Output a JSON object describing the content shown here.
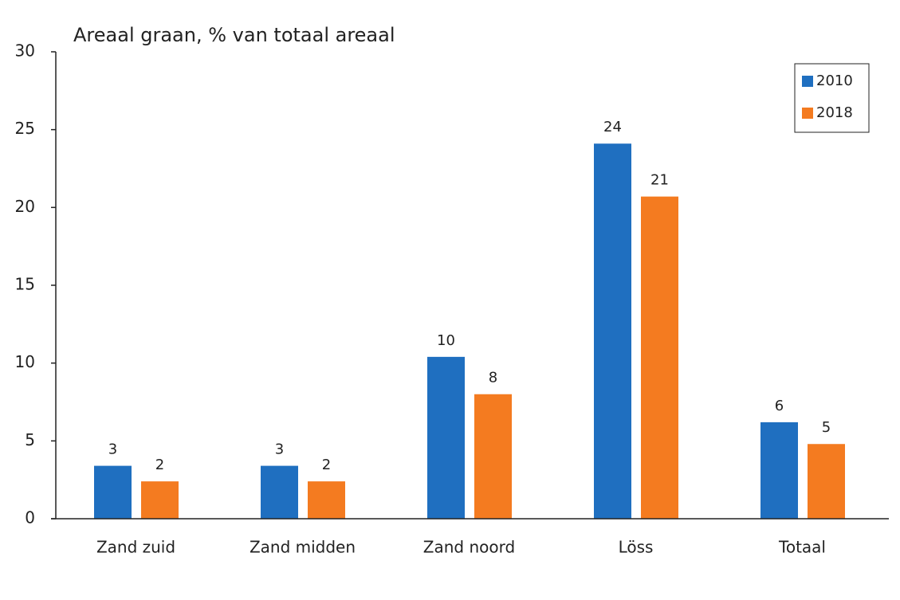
{
  "chart_data": {
    "type": "bar",
    "title": "Areaal graan, % van totaal areaal",
    "categories": [
      "Zand zuid",
      "Zand midden",
      "Zand noord",
      "Löss",
      "Totaal"
    ],
    "series": [
      {
        "name": "2010",
        "color": "#1f6fc0",
        "values": [
          3.4,
          3.4,
          10.4,
          24.1,
          6.2
        ],
        "value_labels": [
          "3",
          "3",
          "10",
          "24",
          "6"
        ]
      },
      {
        "name": "2018",
        "color": "#f47b20",
        "values": [
          2.4,
          2.4,
          8.0,
          20.7,
          4.8
        ],
        "value_labels": [
          "2",
          "2",
          "8",
          "21",
          "5"
        ]
      }
    ],
    "ylim": [
      0,
      30
    ],
    "yticks": [
      0,
      5,
      10,
      15,
      20,
      25,
      30
    ],
    "legend": "upper right"
  }
}
